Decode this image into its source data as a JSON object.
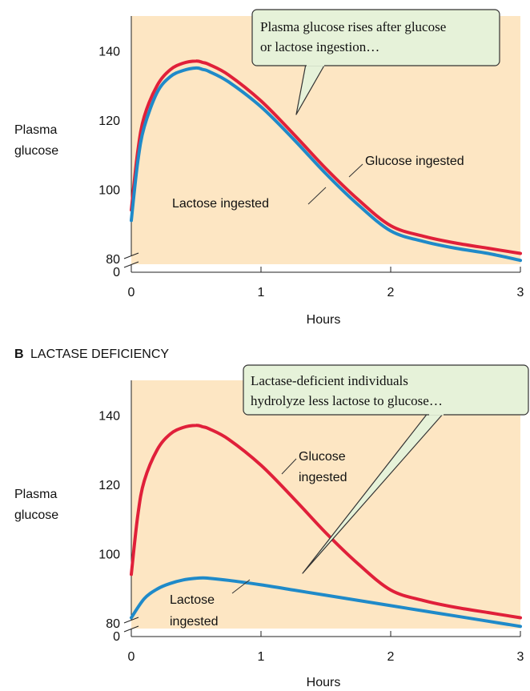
{
  "colors": {
    "plot_background": "#fde6c3",
    "glucose_line": "#e0203a",
    "lactose_line": "#1f8ac9",
    "callout_fill": "#e6f2d9",
    "callout_border": "#333333"
  },
  "chart_data": [
    {
      "type": "line",
      "title": "",
      "xlabel": "Hours",
      "ylabel_lines": [
        "Plasma",
        "glucose"
      ],
      "xlim": [
        0,
        3
      ],
      "ylim": [
        80,
        150
      ],
      "y_axis_break": true,
      "x_ticks": [
        "0",
        "1",
        "2",
        "3"
      ],
      "y_ticks": [
        "80",
        "100",
        "120",
        "140"
      ],
      "y_break_label": "0",
      "grid": false,
      "series": [
        {
          "name": "Glucose ingested",
          "color": "#e0203a",
          "x": [
            0,
            0.05,
            0.1,
            0.2,
            0.3,
            0.4,
            0.5,
            0.55,
            0.6,
            0.75,
            1.0,
            1.25,
            1.5,
            1.75,
            2.0,
            2.25,
            2.5,
            2.75,
            3.0
          ],
          "y": [
            94,
            111,
            121,
            130,
            134.5,
            136.4,
            137,
            136.6,
            136,
            133,
            125.5,
            116,
            106,
            97,
            89.5,
            86.5,
            84.5,
            83,
            81.5
          ]
        },
        {
          "name": "Lactose ingested",
          "color": "#1f8ac9",
          "x": [
            0,
            0.05,
            0.1,
            0.2,
            0.3,
            0.4,
            0.5,
            0.55,
            0.6,
            0.75,
            1.0,
            1.25,
            1.5,
            1.75,
            2.0,
            2.25,
            2.5,
            2.75,
            3.0
          ],
          "y": [
            91,
            108,
            118,
            128,
            132.5,
            134.3,
            135,
            134.6,
            134,
            131,
            123.8,
            114.5,
            104.5,
            95.5,
            88,
            85,
            83,
            81.5,
            79.5
          ]
        }
      ],
      "callout": "Plasma glucose rises after glucose or lactose ingestion…"
    },
    {
      "type": "line",
      "title": "LACTASE DEFICIENCY",
      "panel_letter": "B",
      "xlabel": "Hours",
      "ylabel_lines": [
        "Plasma",
        "glucose"
      ],
      "xlim": [
        0,
        3
      ],
      "ylim": [
        80,
        150
      ],
      "y_axis_break": true,
      "x_ticks": [
        "0",
        "1",
        "2",
        "3"
      ],
      "y_ticks": [
        "80",
        "100",
        "120",
        "140"
      ],
      "y_break_label": "0",
      "grid": false,
      "series": [
        {
          "name": "Glucose ingested",
          "label_lines": [
            "Glucose",
            "ingested"
          ],
          "color": "#e0203a",
          "x": [
            0,
            0.05,
            0.1,
            0.2,
            0.3,
            0.4,
            0.5,
            0.55,
            0.6,
            0.75,
            1.0,
            1.25,
            1.5,
            1.75,
            2.0,
            2.25,
            2.5,
            2.75,
            3.0
          ],
          "y": [
            94,
            111,
            121,
            130,
            134.5,
            136.4,
            137,
            136.6,
            136,
            133,
            125.5,
            116,
            106,
            97,
            89.5,
            86.5,
            84.5,
            83,
            81.5
          ]
        },
        {
          "name": "Lactose ingested",
          "label_lines": [
            "Lactose",
            "ingested"
          ],
          "color": "#1f8ac9",
          "x": [
            0,
            0.1,
            0.2,
            0.3,
            0.4,
            0.5,
            0.55,
            0.6,
            0.75,
            1.0,
            1.25,
            1.5,
            1.75,
            2.0,
            2.25,
            2.5,
            2.75,
            3.0
          ],
          "y": [
            81.5,
            87,
            89.8,
            91.4,
            92.4,
            92.9,
            93,
            92.9,
            92.3,
            91,
            89.5,
            88,
            86.5,
            85,
            83.5,
            82,
            80.5,
            79
          ]
        }
      ],
      "callout": "Lactase-deficient individuals hydrolyze less lactose to glucose…"
    }
  ]
}
